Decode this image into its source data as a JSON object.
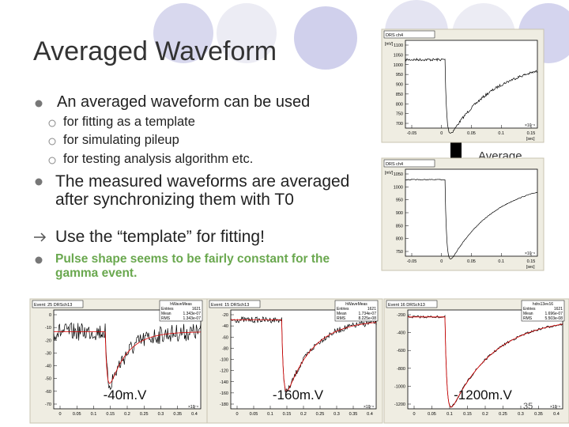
{
  "title": "Averaged Waveform",
  "bullets": [
    {
      "text": "An averaged waveform can be used",
      "sub": [
        "for fitting as a template",
        "for simulating pileup",
        "for testing analysis algorithm etc."
      ]
    },
    {
      "text": "The measured waveforms are averaged after synchronizing them with T0"
    },
    {
      "text": "Use the “template” for fitting!"
    },
    {
      "text": "Pulse shape seems to be fairly constant for the gamma event."
    }
  ],
  "average_label": "Average",
  "plots": [
    {
      "title": "DRS ch4",
      "y_unit": "[mV]",
      "yticks": [
        "1100",
        "1050",
        "1000",
        "950",
        "900",
        "850",
        "800",
        "750",
        "700"
      ],
      "xticks": [
        "-0.05",
        "0",
        "0.05",
        "0.1",
        "0.15"
      ],
      "x_unit": "[sec]",
      "x_exp": "×10⁻⁶"
    },
    {
      "title": "DRS ch4",
      "y_unit": "[mV]",
      "yticks": [
        "1050",
        "1000",
        "950",
        "900",
        "850",
        "800",
        "750"
      ],
      "xticks": [
        "-0.05",
        "0",
        "0.05",
        "0.1",
        "0.15"
      ],
      "x_unit": "[sec]",
      "x_exp": "×10⁻⁶"
    },
    {
      "title": "Event: 25 DRSch13",
      "yticks": [
        "0",
        "-10",
        "-20",
        "-30",
        "-40",
        "-50",
        "-60",
        "-70"
      ],
      "xticks": [
        "0",
        "0.05",
        "0.1",
        "0.15",
        "0.2",
        "0.25",
        "0.3",
        "0.35",
        "0.4"
      ],
      "x_exp": "×10⁻⁶",
      "stats": {
        "name": "hWaveMeas",
        "Entries": "1621",
        "Mean": "1.343e-07",
        "RMS": "1.343e-07"
      },
      "amplitude": "-40m.V"
    },
    {
      "title": "Event: 15 DRSch13",
      "yticks": [
        "-20",
        "-40",
        "-60",
        "-80",
        "-100",
        "-120",
        "-140",
        "-160",
        "-180"
      ],
      "xticks": [
        "0",
        "0.05",
        "0.1",
        "0.15",
        "0.2",
        "0.25",
        "0.3",
        "0.35",
        "0.4"
      ],
      "x_exp": "×10⁻⁶",
      "stats": {
        "name": "hWaveMeas",
        "Entries": "1621",
        "Mean": "1.734e-07",
        "RMS": "8.225e-08"
      },
      "amplitude": "-160m.V"
    },
    {
      "title": "Event 16 DRSch13",
      "yticks": [
        "-200",
        "-400",
        "-600",
        "-800",
        "-1000",
        "-1200"
      ],
      "xticks": [
        "0",
        "0.05",
        "0.1",
        "0.15",
        "0.2",
        "0.25",
        "0.3",
        "0.35",
        "0.4"
      ],
      "x_exp": "×10⁻⁶",
      "stats": {
        "name": "hdrs13ev16",
        "Entries": "1621",
        "Mean": "1.696e-07",
        "RMS": "5.503e-08"
      },
      "amplitude": "-1200m.V"
    }
  ],
  "page_number": "35"
}
